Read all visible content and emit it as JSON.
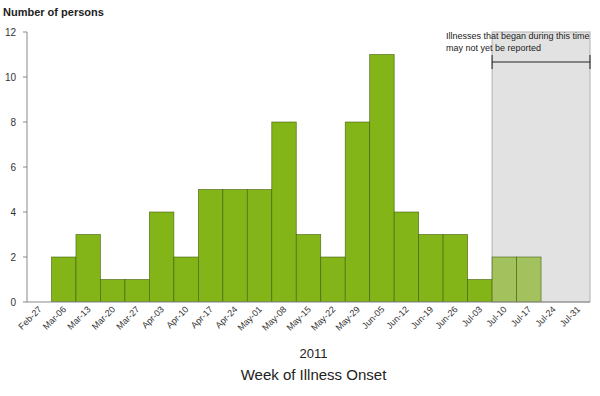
{
  "chart_data": {
    "type": "bar",
    "y_label": "Number of persons",
    "x_label": [
      "2011",
      "Week of Illness Onset"
    ],
    "categories": [
      "Feb-27",
      "Mar-06",
      "Mar-13",
      "Mar-20",
      "Mar-27",
      "Apr-03",
      "Apr-10",
      "Apr-17",
      "Apr-24",
      "May-01",
      "May-08",
      "May-15",
      "May-22",
      "May-29",
      "Jun-05",
      "Jun-12",
      "Jun-19",
      "Jun-26",
      "Jul-03",
      "Jul-10",
      "Jul-17",
      "Jul-24",
      "Jul-31"
    ],
    "values": [
      0,
      2,
      3,
      1,
      1,
      4,
      2,
      5,
      5,
      5,
      8,
      3,
      2,
      8,
      11,
      4,
      3,
      3,
      1,
      2,
      2,
      0,
      0
    ],
    "colors": [
      "#83b418",
      "#83b418",
      "#83b418",
      "#83b418",
      "#83b418",
      "#83b418",
      "#83b418",
      "#83b418",
      "#83b418",
      "#83b418",
      "#83b418",
      "#83b418",
      "#83b418",
      "#83b418",
      "#83b418",
      "#83b418",
      "#83b418",
      "#83b418",
      "#83b418",
      "#a3c25e",
      "#a3c25e",
      "#a3c25e",
      "#a3c25e"
    ],
    "ylim": [
      0,
      12
    ],
    "yticks": [
      0,
      2,
      4,
      6,
      8,
      10,
      12
    ],
    "grid": false,
    "annotations": [
      {
        "text": [
          "Illnesses that began during this time",
          "may not yet be reported"
        ],
        "x": "Jul-10"
      }
    ]
  }
}
